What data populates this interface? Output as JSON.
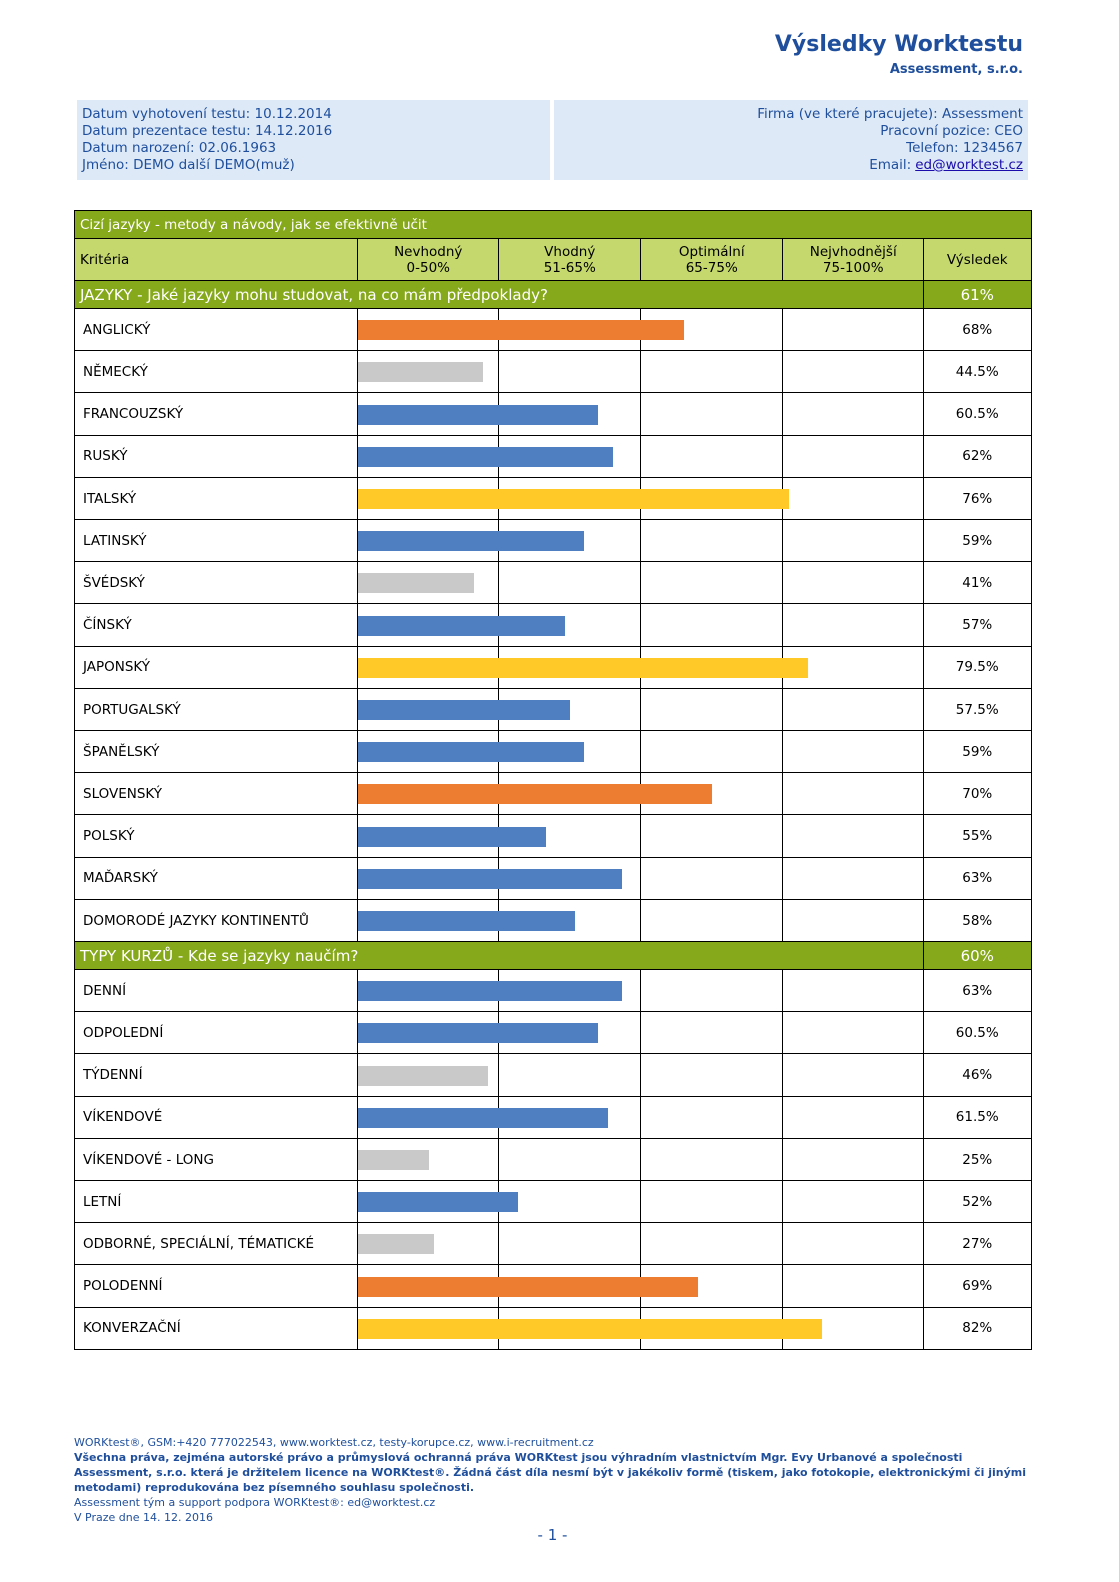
{
  "header": {
    "title": "Výsledky Worktestu",
    "subtitle": "Assessment, s.r.o."
  },
  "info": {
    "left": [
      "Datum vyhotovení testu: 10.12.2014",
      "Datum prezentace testu: 14.12.2016",
      "Datum narození: 02.06.1963",
      "Jméno: DEMO další DEMO(muž)"
    ],
    "right": [
      "Firma (ve které pracujete): Assessment",
      "Pracovní pozice: CEO",
      "Telefon: 1234567"
    ],
    "email": {
      "label": "Email:",
      "link": "ed@worktest.cz"
    }
  },
  "table": {
    "title": "Cizí jazyky - metody a návody, jak se efektivně učit",
    "criteria_header": "Kritéria",
    "result_header": "Výsledek",
    "bands": [
      {
        "name": "Nevhodný",
        "range": "0-50%",
        "color": "#c9c9c9"
      },
      {
        "name": "Vhodný",
        "range": "51-65%",
        "color": "#4f7fc0"
      },
      {
        "name": "Optimální",
        "range": "65-75%",
        "color": "#ed7d31"
      },
      {
        "name": "Nejvhodnější",
        "range": "75-100%",
        "color": "#ffca28"
      }
    ],
    "scale": [
      0,
      50,
      65,
      75,
      100
    ],
    "groups": [
      {
        "title": "JAZYKY - Jaké jazyky mohu studovat, na co mám předpoklady?",
        "result": "61%",
        "rows": [
          {
            "name": "ANGLICKÝ",
            "value": 68,
            "label": "68%"
          },
          {
            "name": "NĚMECKÝ",
            "value": 44.5,
            "label": "44.5%"
          },
          {
            "name": "FRANCOUZSKÝ",
            "value": 60.5,
            "label": "60.5%"
          },
          {
            "name": "RUSKÝ",
            "value": 62,
            "label": "62%"
          },
          {
            "name": "ITALSKÝ",
            "value": 76,
            "label": "76%"
          },
          {
            "name": "LATINSKÝ",
            "value": 59,
            "label": "59%"
          },
          {
            "name": "ŠVÉDSKÝ",
            "value": 41,
            "label": "41%"
          },
          {
            "name": "ČÍNSKÝ",
            "value": 57,
            "label": "57%"
          },
          {
            "name": "JAPONSKÝ",
            "value": 79.5,
            "label": "79.5%"
          },
          {
            "name": "PORTUGALSKÝ",
            "value": 57.5,
            "label": "57.5%"
          },
          {
            "name": "ŠPANĚLSKÝ",
            "value": 59,
            "label": "59%"
          },
          {
            "name": "SLOVENSKÝ",
            "value": 70,
            "label": "70%"
          },
          {
            "name": "POLSKÝ",
            "value": 55,
            "label": "55%"
          },
          {
            "name": "MAĎARSKÝ",
            "value": 63,
            "label": "63%"
          },
          {
            "name": "DOMORODÉ JAZYKY KONTINENTŮ",
            "value": 58,
            "label": "58%"
          }
        ]
      },
      {
        "title": "TYPY KURZŮ - Kde se jazyky naučím?",
        "result": "60%",
        "rows": [
          {
            "name": "DENNÍ",
            "value": 63,
            "label": "63%"
          },
          {
            "name": "ODPOLEDNÍ",
            "value": 60.5,
            "label": "60.5%"
          },
          {
            "name": "TÝDENNÍ",
            "value": 46,
            "label": "46%"
          },
          {
            "name": "VÍKENDOVÉ",
            "value": 61.5,
            "label": "61.5%"
          },
          {
            "name": "VÍKENDOVÉ - LONG",
            "value": 25,
            "label": "25%"
          },
          {
            "name": "LETNÍ",
            "value": 52,
            "label": "52%"
          },
          {
            "name": "ODBORNÉ, SPECIÁLNÍ, TÉMATICKÉ",
            "value": 27,
            "label": "27%"
          },
          {
            "name": "POLODENNÍ",
            "value": 69,
            "label": "69%"
          },
          {
            "name": "KONVERZAČNÍ",
            "value": 82,
            "label": "82%"
          }
        ]
      }
    ]
  },
  "footer": {
    "contacts": "WORKtest®, GSM:+420 777022543, www.worktest.cz, testy-korupce.cz, www.i-recruitment.cz",
    "rights": "Všechna práva, zejména autorské právo a průmyslová ochranná práva WORKtest jsou výhradním vlastnictvím Mgr. Evy Urbanové a společnosti Assessment, s.r.o. která je držitelem licence na WORKtest®. Žádná část díla nesmí být v jakékoliv formě (tiskem, jako fotokopie, elektronickými či jinými metodami) reprodukována bez písemného souhlasu společnosti.",
    "support": "Assessment tým a support podpora WORKtest®: ed@worktest.cz",
    "place_date": "V Praze dne 14. 12. 2016",
    "page": "- 1 -"
  }
}
